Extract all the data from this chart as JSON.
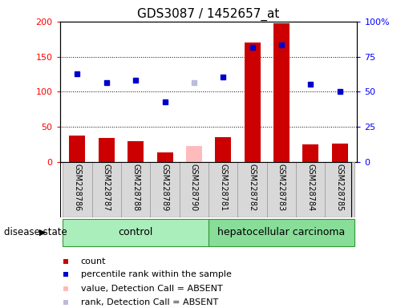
{
  "title": "GDS3087 / 1452657_at",
  "samples": [
    "GSM228786",
    "GSM228787",
    "GSM228788",
    "GSM228789",
    "GSM228790",
    "GSM228781",
    "GSM228782",
    "GSM228783",
    "GSM228784",
    "GSM228785"
  ],
  "bar_values": [
    37,
    34,
    29,
    13,
    23,
    35,
    170,
    198,
    25,
    26
  ],
  "bar_colors": [
    "#cc0000",
    "#cc0000",
    "#cc0000",
    "#cc0000",
    "#ffbbbb",
    "#cc0000",
    "#cc0000",
    "#cc0000",
    "#cc0000",
    "#cc0000"
  ],
  "dot_values": [
    125,
    113,
    116,
    85,
    113,
    121,
    163,
    167,
    111,
    100
  ],
  "dot_colors": [
    "#0000cc",
    "#0000cc",
    "#0000cc",
    "#0000cc",
    "#bbbbdd",
    "#0000cc",
    "#0000cc",
    "#0000cc",
    "#0000cc",
    "#0000cc"
  ],
  "ylim_left": [
    0,
    200
  ],
  "ylim_right": [
    0,
    100
  ],
  "yticks_left": [
    0,
    50,
    100,
    150,
    200
  ],
  "ytick_labels_left": [
    "0",
    "50",
    "100",
    "150",
    "200"
  ],
  "yticks_right": [
    0,
    25,
    50,
    75,
    100
  ],
  "ytick_labels_right": [
    "0",
    "25",
    "50",
    "75",
    "100%"
  ],
  "grid_values": [
    50,
    100,
    150
  ],
  "control_range": [
    0,
    4
  ],
  "hcc_range": [
    5,
    9
  ],
  "control_color": "#aaeebb",
  "hcc_color": "#88dd99",
  "col_bg": "#d8d8d8",
  "legend_items": [
    {
      "label": "count",
      "color": "#cc0000"
    },
    {
      "label": "percentile rank within the sample",
      "color": "#0000cc"
    },
    {
      "label": "value, Detection Call = ABSENT",
      "color": "#ffbbbb"
    },
    {
      "label": "rank, Detection Call = ABSENT",
      "color": "#bbbbdd"
    }
  ],
  "disease_state_label": "disease state",
  "bar_width": 0.55,
  "dot_size": 5,
  "title_fontsize": 11,
  "tick_fontsize": 8,
  "label_fontsize": 7,
  "group_fontsize": 9,
  "legend_fontsize": 8
}
